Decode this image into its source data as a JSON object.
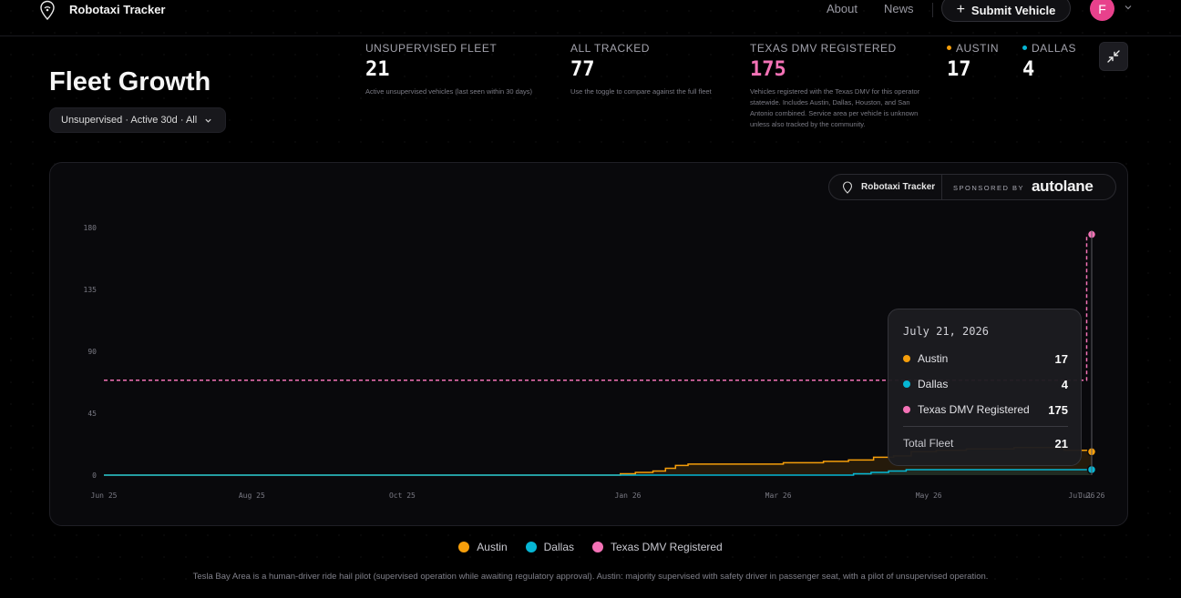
{
  "header": {
    "brand": "Robotaxi Tracker",
    "nav": [
      "About",
      "News"
    ],
    "submit_label": "Submit Vehicle",
    "avatar_initial": "F"
  },
  "page": {
    "title": "Fleet Growth",
    "filter": "Unsupervised · Active 30d · All"
  },
  "stats": {
    "unsupervised": {
      "label": "UNSUPERVISED FLEET",
      "value": "21",
      "desc": "Active unsupervised vehicles (last seen within 30 days)"
    },
    "all_tracked": {
      "label": "ALL TRACKED",
      "value": "77",
      "desc": "Use the toggle to compare against the full fleet"
    },
    "dmv": {
      "label": "TEXAS DMV REGISTERED",
      "value": "175",
      "desc": "Vehicles registered with the Texas DMV for this operator statewide. Includes Austin, Dallas, Houston, and San Antonio combined. Service area per vehicle is unknown unless also tracked by the community."
    },
    "austin": {
      "label": "AUSTIN",
      "value": "17"
    },
    "dallas": {
      "label": "DALLAS",
      "value": "4"
    }
  },
  "sponsor": {
    "brand": "Robotaxi Tracker",
    "by": "SPONSORED BY",
    "logo": "autolane"
  },
  "colors": {
    "austin": "#f59e0b",
    "dallas": "#06b6d4",
    "dmv": "#f472b6",
    "accent": "#e8418c"
  },
  "tooltip": {
    "date": "July 21, 2026",
    "rows": [
      {
        "name": "Austin",
        "value": "17"
      },
      {
        "name": "Dallas",
        "value": "4"
      },
      {
        "name": "Texas DMV Registered",
        "value": "175"
      }
    ],
    "total_label": "Total Fleet",
    "total_value": "21"
  },
  "chart_data": {
    "type": "line",
    "x_ticks": [
      "Jun 25",
      "Aug 25",
      "Oct 25",
      "Jan 26",
      "Mar 26",
      "May 26",
      "Jul 26",
      "Jul 26"
    ],
    "y_ticks": [
      0,
      45,
      90,
      135,
      180
    ],
    "ylim": [
      0,
      180
    ],
    "xlim": [
      "2025-06-22",
      "2026-07-21"
    ],
    "grid": false,
    "legend": "bottom-center",
    "series": [
      {
        "name": "Austin",
        "color": "#f59e0b",
        "points": [
          [
            "2025-06-22",
            0
          ],
          [
            "2026-01-13",
            0
          ],
          [
            "2026-01-14",
            1
          ],
          [
            "2026-01-20",
            2
          ],
          [
            "2026-01-27",
            3
          ],
          [
            "2026-02-01",
            5
          ],
          [
            "2026-02-05",
            7
          ],
          [
            "2026-02-10",
            8
          ],
          [
            "2026-03-01",
            8
          ],
          [
            "2026-03-20",
            9
          ],
          [
            "2026-04-05",
            10
          ],
          [
            "2026-04-15",
            11
          ],
          [
            "2026-04-25",
            13
          ],
          [
            "2026-05-03",
            14
          ],
          [
            "2026-05-10",
            17
          ],
          [
            "2026-05-20",
            18
          ],
          [
            "2026-06-01",
            19
          ],
          [
            "2026-06-20",
            20
          ],
          [
            "2026-07-10",
            18
          ],
          [
            "2026-07-21",
            17
          ]
        ]
      },
      {
        "name": "Dallas",
        "color": "#06b6d4",
        "points": [
          [
            "2025-06-22",
            0
          ],
          [
            "2026-04-16",
            0
          ],
          [
            "2026-04-17",
            1
          ],
          [
            "2026-04-24",
            2
          ],
          [
            "2026-05-01",
            3
          ],
          [
            "2026-05-08",
            4
          ],
          [
            "2026-07-21",
            4
          ]
        ]
      },
      {
        "name": "Texas DMV Registered",
        "color": "#f472b6",
        "dashed": true,
        "points": [
          [
            "2025-06-22",
            69
          ],
          [
            "2026-07-19",
            69
          ],
          [
            "2026-07-19",
            175
          ],
          [
            "2026-07-21",
            175
          ]
        ]
      }
    ]
  },
  "footnote": "Tesla Bay Area is a human-driver ride hail pilot (supervised operation while awaiting regulatory approval). Austin: majority supervised with safety driver in passenger seat, with a pilot of unsupervised operation."
}
